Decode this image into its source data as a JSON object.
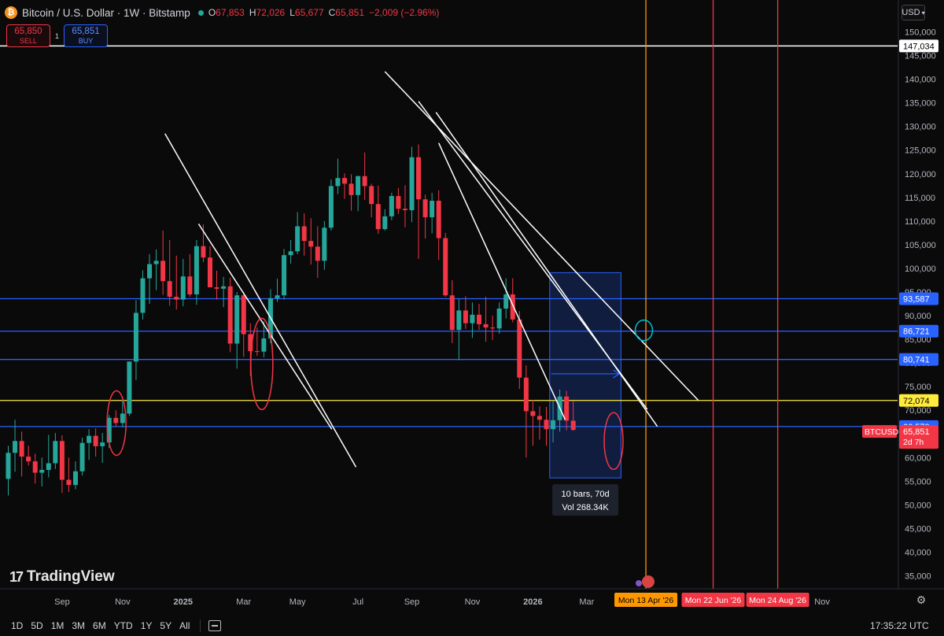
{
  "header": {
    "title": "Bitcoin / U.S. Dollar · 1W · Bitstamp",
    "ohlc": [
      {
        "k": "O",
        "v": "67,853"
      },
      {
        "k": "H",
        "v": "72,026"
      },
      {
        "k": "L",
        "v": "65,677"
      },
      {
        "k": "C",
        "v": "65,851"
      },
      {
        "k": "",
        "v": "−2,009 (−2.96%)"
      }
    ]
  },
  "trade": {
    "sell_price": "65,850",
    "sell_label": "SELL",
    "spread": "1",
    "buy_price": "65,851",
    "buy_label": "BUY"
  },
  "currency": "USD",
  "watermark": "TradingView",
  "timeframes": [
    "1D",
    "5D",
    "1M",
    "3M",
    "6M",
    "YTD",
    "1Y",
    "5Y",
    "All"
  ],
  "clock": "17:35:22 UTC",
  "colors": {
    "up": "#26a69a",
    "down": "#f23645",
    "blue": "#2962ff",
    "yellow": "#ffeb3b",
    "orange": "#ff9800",
    "red_line": "#f23645",
    "cyan": "#00bcd4"
  },
  "chart_data": {
    "type": "candlestick",
    "ylim": [
      35000,
      152000
    ],
    "y_ticks": [
      35000,
      40000,
      45000,
      50000,
      55000,
      60000,
      65000,
      70000,
      75000,
      80000,
      85000,
      90000,
      95000,
      100000,
      105000,
      110000,
      115000,
      120000,
      125000,
      130000,
      135000,
      140000,
      145000,
      150000
    ],
    "x_ticks": [
      {
        "label": "Sep",
        "i": 8
      },
      {
        "label": "Nov",
        "i": 17
      },
      {
        "label": "2025",
        "i": 26
      },
      {
        "label": "Mar",
        "i": 35
      },
      {
        "label": "May",
        "i": 43
      },
      {
        "label": "Jul",
        "i": 52
      },
      {
        "label": "Sep",
        "i": 60
      },
      {
        "label": "Nov",
        "i": 69
      },
      {
        "label": "2026",
        "i": 78
      },
      {
        "label": "Mar",
        "i": 86
      },
      {
        "label": "Nov",
        "i": 121
      }
    ],
    "candles": [
      [
        55500,
        62500,
        52000,
        61000
      ],
      [
        61000,
        68000,
        57000,
        63500
      ],
      [
        63500,
        65500,
        56000,
        60200
      ],
      [
        60200,
        62500,
        58300,
        59200
      ],
      [
        59200,
        60800,
        54500,
        56800
      ],
      [
        56800,
        60000,
        53900,
        57400
      ],
      [
        57400,
        64800,
        55800,
        58800
      ],
      [
        58800,
        65200,
        57600,
        63500
      ],
      [
        63500,
        64700,
        52500,
        55300
      ],
      [
        55300,
        60000,
        52700,
        54200
      ],
      [
        54200,
        59200,
        53300,
        57100
      ],
      [
        57100,
        64200,
        56200,
        63100
      ],
      [
        63100,
        66000,
        59500,
        64600
      ],
      [
        64600,
        66200,
        60200,
        62400
      ],
      [
        62400,
        65200,
        58900,
        63200
      ],
      [
        63200,
        69000,
        62000,
        68400
      ],
      [
        68400,
        70000,
        66600,
        67300
      ],
      [
        67300,
        72800,
        66400,
        69300
      ],
      [
        69300,
        80300,
        68800,
        80300
      ],
      [
        80300,
        93300,
        76400,
        90600
      ],
      [
        90600,
        99600,
        89200,
        97900
      ],
      [
        97900,
        103000,
        92500,
        100900
      ],
      [
        100900,
        104000,
        95400,
        101600
      ],
      [
        101600,
        108000,
        94400,
        97300
      ],
      [
        97300,
        106000,
        92100,
        94000
      ],
      [
        94000,
        102700,
        91300,
        93400
      ],
      [
        93400,
        102000,
        92000,
        98300
      ],
      [
        98300,
        103000,
        94000,
        94500
      ],
      [
        94500,
        106000,
        92300,
        104700
      ],
      [
        104700,
        109300,
        101300,
        102300
      ],
      [
        102300,
        104700,
        96500,
        96000
      ],
      [
        96000,
        99500,
        93400,
        95700
      ],
      [
        95700,
        98200,
        91800,
        96200
      ],
      [
        96200,
        98000,
        82300,
        84100
      ],
      [
        84100,
        95000,
        78800,
        94300
      ],
      [
        94300,
        95000,
        81300,
        86100
      ],
      [
        86100,
        88400,
        77300,
        82500
      ],
      [
        82500,
        87500,
        81500,
        82400
      ],
      [
        82400,
        88800,
        81200,
        85200
      ],
      [
        85200,
        95600,
        84200,
        93700
      ],
      [
        93700,
        97800,
        92900,
        94300
      ],
      [
        94300,
        104100,
        93400,
        102800
      ],
      [
        102800,
        106000,
        101000,
        103600
      ],
      [
        103600,
        111900,
        103000,
        108900
      ],
      [
        108900,
        111600,
        102700,
        105800
      ],
      [
        105800,
        110600,
        100800,
        104600
      ],
      [
        104600,
        108900,
        98000,
        101600
      ],
      [
        101600,
        110000,
        99700,
        108600
      ],
      [
        108600,
        118800,
        108000,
        117400
      ],
      [
        117400,
        123200,
        115700,
        119100
      ],
      [
        119100,
        120100,
        114700,
        117900
      ],
      [
        117900,
        119900,
        112200,
        115500
      ],
      [
        115500,
        119600,
        112100,
        119500
      ],
      [
        119500,
        124500,
        114500,
        117400
      ],
      [
        117400,
        117900,
        110800,
        113600
      ],
      [
        113600,
        117500,
        107300,
        108300
      ],
      [
        108300,
        112500,
        108000,
        111000
      ],
      [
        111000,
        116000,
        110200,
        115300
      ],
      [
        115300,
        117000,
        111500,
        112600
      ],
      [
        112600,
        117600,
        108700,
        112300
      ],
      [
        112300,
        125700,
        109800,
        123500
      ],
      [
        123500,
        126200,
        102000,
        114600
      ],
      [
        114600,
        115600,
        106300,
        110800
      ],
      [
        110800,
        116000,
        107400,
        114300
      ],
      [
        114300,
        116500,
        101800,
        106400
      ],
      [
        106400,
        107500,
        94000,
        94300
      ],
      [
        94300,
        97500,
        84200,
        87000
      ],
      [
        87000,
        93500,
        80600,
        91100
      ],
      [
        91100,
        94100,
        87200,
        88400
      ],
      [
        88400,
        92800,
        85300,
        90200
      ],
      [
        90200,
        92500,
        87000,
        88200
      ],
      [
        88200,
        94000,
        84500,
        87500
      ],
      [
        87500,
        90000,
        84900,
        87300
      ],
      [
        87300,
        92800,
        86200,
        91500
      ],
      [
        91500,
        97900,
        89400,
        94500
      ],
      [
        94500,
        97900,
        88600,
        89200
      ],
      [
        89200,
        91000,
        74500,
        76900
      ],
      [
        76900,
        79500,
        60000,
        69800
      ],
      [
        69800,
        72200,
        62500,
        68800
      ],
      [
        68800,
        70800,
        63800,
        68000
      ],
      [
        68000,
        70700,
        62500,
        66000
      ],
      [
        66000,
        72000,
        63200,
        67900
      ],
      [
        67900,
        74400,
        65500,
        72900
      ],
      [
        72900,
        74100,
        65800,
        67800
      ],
      [
        67800,
        72000,
        65677,
        65851
      ]
    ],
    "h_levels": [
      {
        "value": 147034,
        "label": "147,034",
        "color": "#ffffff"
      },
      {
        "value": 93587,
        "label": "93,587",
        "color": "#2962ff"
      },
      {
        "value": 86721,
        "label": "86,721",
        "color": "#2962ff"
      },
      {
        "value": 80741,
        "label": "80,741",
        "color": "#2962ff"
      },
      {
        "value": 72074,
        "label": "72,074",
        "color": "#ffeb3b"
      },
      {
        "value": 66570,
        "label": "66,570",
        "color": "#2962ff"
      }
    ],
    "v_lines": [
      {
        "i": 94.8,
        "label": "Mon 13 Apr '26",
        "color": "#ff9800"
      },
      {
        "i": 104.8,
        "label": "Mon 22 Jun '26",
        "color": "#f23645"
      },
      {
        "i": 114.4,
        "label": "Mon 24 Aug '26",
        "color": "#f23645"
      }
    ],
    "price_tag": {
      "symbol": "BTCUSD",
      "price": "65,851",
      "countdown": "2d 7h",
      "value": 65851
    },
    "range_box": {
      "i_from": 80.5,
      "i_to": 91.1,
      "v_top": 99100,
      "v_bottom": 55700,
      "measure_value": 77700,
      "line1": "10 bars, 70d",
      "line2": "Vol 268.34K"
    },
    "trend_lines": [
      {
        "p1": [
          23.3,
          128500
        ],
        "p2": [
          51.7,
          58000
        ]
      },
      {
        "p1": [
          28.3,
          109400
        ],
        "p2": [
          48.1,
          66000
        ]
      },
      {
        "p1": [
          56.0,
          141600
        ],
        "p2": [
          102.6,
          72100
        ]
      },
      {
        "p1": [
          61.0,
          135300
        ],
        "p2": [
          95.0,
          70200
        ]
      },
      {
        "p1": [
          63.6,
          133000
        ],
        "p2": [
          96.5,
          66600
        ]
      },
      {
        "p1": [
          64.0,
          126500
        ],
        "p2": [
          82.8,
          68000
        ]
      }
    ],
    "ellipses": [
      {
        "i": 16.1,
        "value": 67300,
        "rx": 12,
        "ry": 41,
        "color": "#f23645"
      },
      {
        "i": 37.7,
        "value": 79800,
        "rx": 14,
        "ry": 58,
        "color": "#f23645"
      },
      {
        "i": 90.0,
        "value": 63500,
        "rx": 12,
        "ry": 36,
        "color": "#f23645"
      },
      {
        "i": 94.5,
        "value": 86900,
        "rx": 11,
        "ry": 13,
        "color": "#00bcd4"
      }
    ]
  }
}
